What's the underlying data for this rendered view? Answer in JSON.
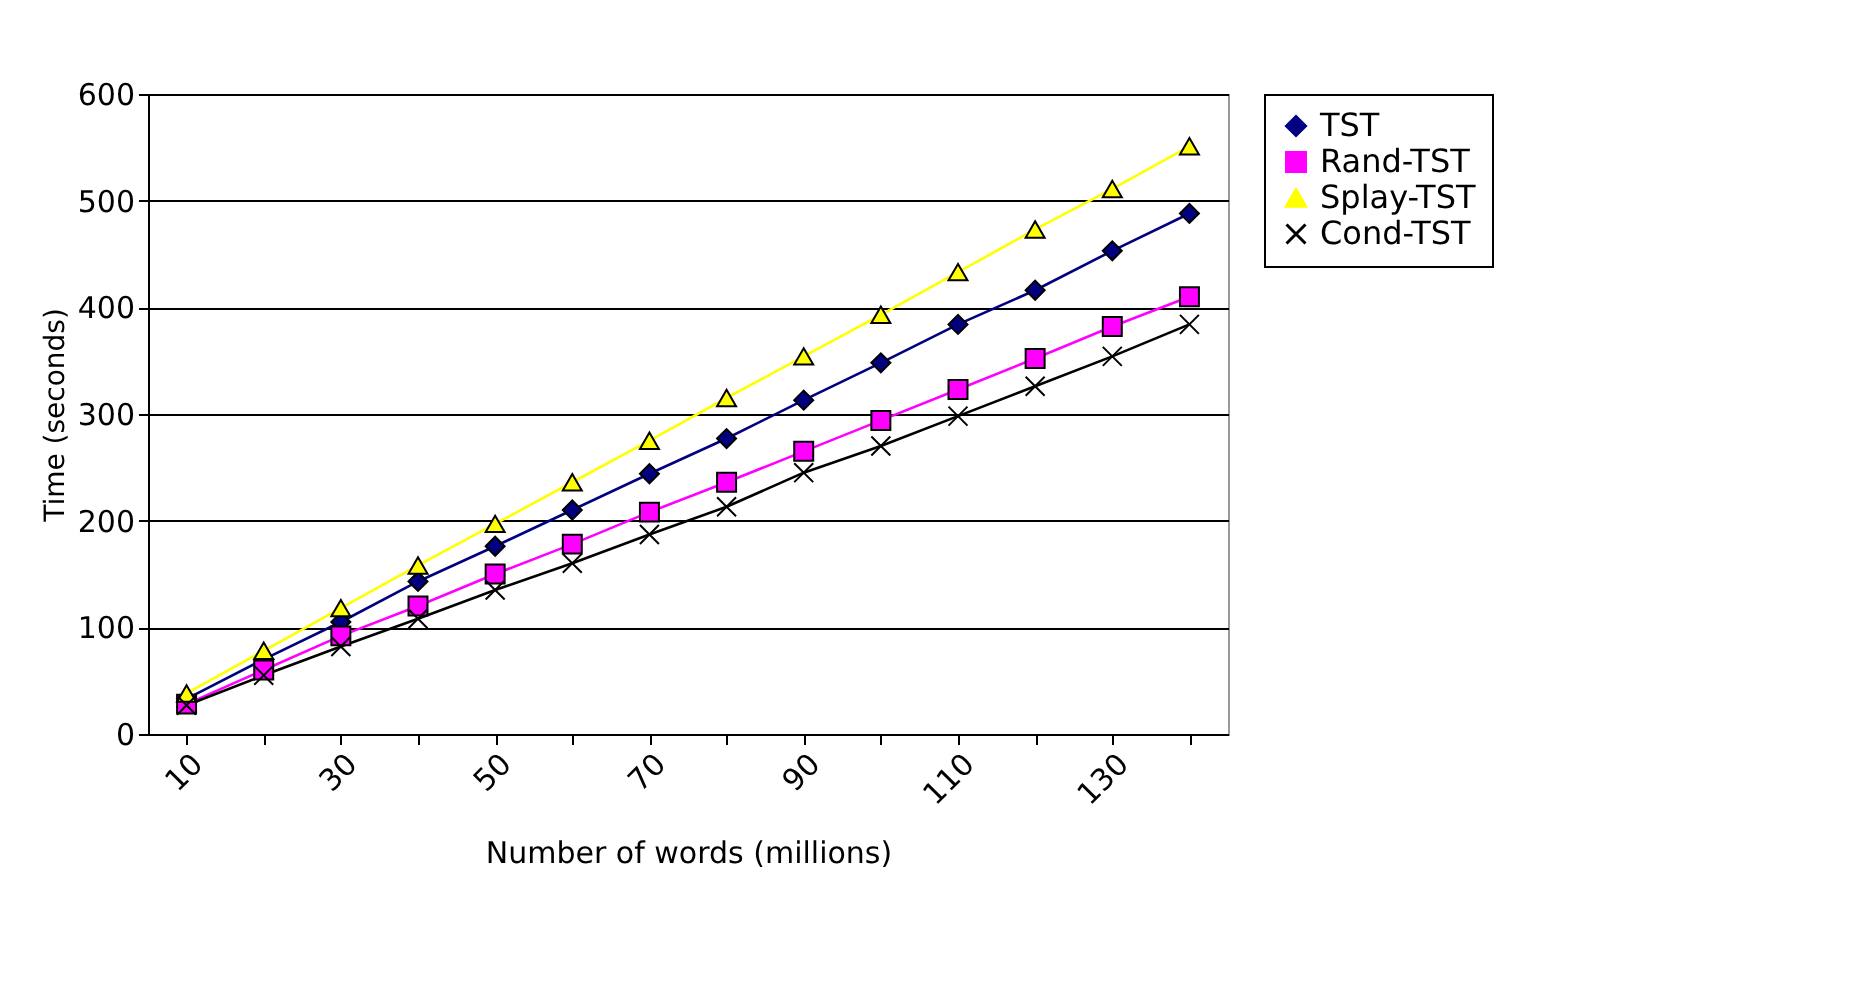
{
  "chart_data": {
    "type": "line",
    "xlabel": "Number of words (millions)",
    "ylabel": "Time (seconds)",
    "categories": [
      "10",
      null,
      "30",
      null,
      "50",
      null,
      "70",
      null,
      "90",
      null,
      "110",
      null,
      "130",
      null
    ],
    "ylim": [
      0,
      600
    ],
    "yticks": [
      0,
      100,
      200,
      300,
      400,
      500,
      600
    ],
    "grid": "y",
    "legend": "right",
    "series": [
      {
        "name": "TST",
        "color": "#000080",
        "marker": "diamond",
        "values": [
          33,
          70,
          105,
          143,
          176,
          210,
          244,
          277,
          313,
          348,
          384,
          416,
          453,
          488
        ]
      },
      {
        "name": "Rand-TST",
        "color": "#ff00ff",
        "marker": "square",
        "values": [
          28,
          60,
          92,
          120,
          150,
          178,
          208,
          236,
          265,
          294,
          323,
          352,
          382,
          410
        ]
      },
      {
        "name": "Splay-TST",
        "color": "#ffff00",
        "marker": "triangle",
        "values": [
          38,
          78,
          118,
          158,
          197,
          236,
          275,
          315,
          354,
          393,
          433,
          473,
          511,
          551
        ]
      },
      {
        "name": "Cond-TST",
        "color": "#000000",
        "marker": "cross",
        "values": [
          27,
          55,
          82,
          108,
          135,
          160,
          187,
          213,
          245,
          270,
          298,
          326,
          354,
          384
        ]
      }
    ]
  }
}
